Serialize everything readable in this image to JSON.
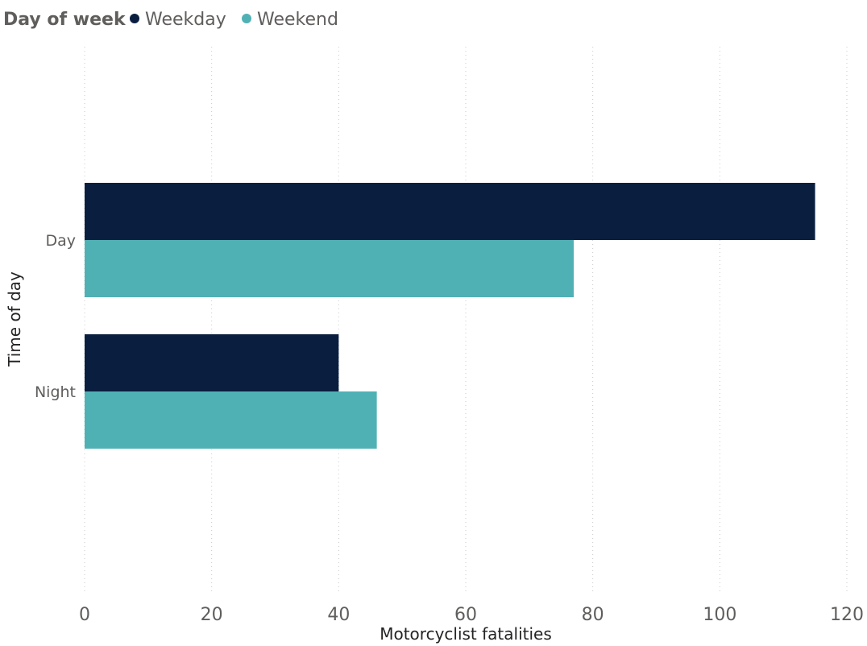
{
  "chart_data": {
    "type": "bar",
    "orientation": "horizontal",
    "legend": {
      "title": "Day of week",
      "position": "top-left"
    },
    "categories": [
      "Day",
      "Night"
    ],
    "series": [
      {
        "name": "Weekday",
        "values": [
          115,
          40
        ],
        "color": "#0a1f40"
      },
      {
        "name": "Weekend",
        "values": [
          77,
          46
        ],
        "color": "#50b1b5"
      }
    ],
    "xlabel": "Motorcyclist fatalities",
    "ylabel": "Time of day",
    "xlim": [
      0,
      120
    ],
    "xticks": [
      0,
      20,
      40,
      60,
      80,
      100,
      120
    ],
    "grid": true
  }
}
